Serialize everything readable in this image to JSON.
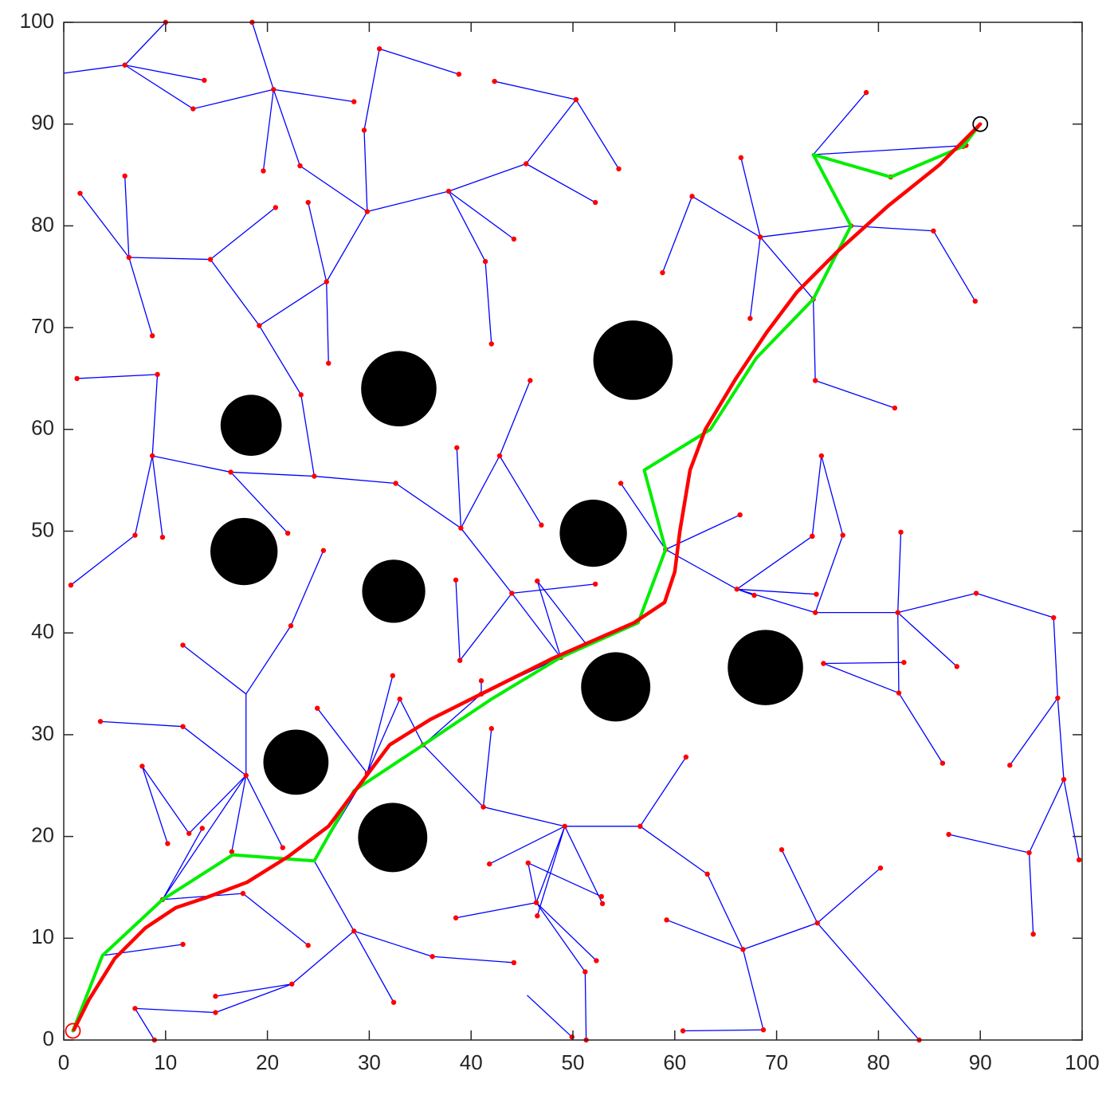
{
  "chart_data": {
    "type": "rrt",
    "xlim": [
      0,
      100
    ],
    "ylim": [
      0,
      100
    ],
    "xticks": [
      0,
      10,
      20,
      30,
      40,
      50,
      60,
      70,
      80,
      90,
      100
    ],
    "yticks": [
      0,
      10,
      20,
      30,
      40,
      50,
      60,
      70,
      80,
      90,
      100
    ],
    "obstacle_color": "#000000",
    "obstacles": [
      [
        18.4,
        60.4,
        3.0
      ],
      [
        32.9,
        64.0,
        3.7
      ],
      [
        55.9,
        66.8,
        3.9
      ],
      [
        17.7,
        48.0,
        3.3
      ],
      [
        32.4,
        44.1,
        3.1
      ],
      [
        52.0,
        49.8,
        3.3
      ],
      [
        22.8,
        27.3,
        3.2
      ],
      [
        32.3,
        19.9,
        3.4
      ],
      [
        54.2,
        34.7,
        3.4
      ],
      [
        68.9,
        36.6,
        3.7
      ]
    ],
    "tree": {
      "edge_color": "#0000ff",
      "node_color": "#ff0000",
      "edges": [
        [
          0,
          95,
          6,
          95.8
        ],
        [
          6,
          95.8,
          10,
          100
        ],
        [
          6,
          95.8,
          13.8,
          94.3
        ],
        [
          6,
          95.8,
          12.7,
          91.5
        ],
        [
          12.7,
          91.5,
          20.6,
          93.4
        ],
        [
          20.6,
          93.4,
          18.5,
          100
        ],
        [
          20.6,
          93.4,
          28.5,
          92.2
        ],
        [
          20.6,
          93.4,
          19.6,
          85.4
        ],
        [
          20.6,
          93.4,
          23.2,
          85.9
        ],
        [
          23.2,
          85.9,
          29.8,
          81.4
        ],
        [
          29.8,
          81.4,
          29.5,
          89.4
        ],
        [
          29.5,
          89.4,
          31,
          97.4
        ],
        [
          31,
          97.4,
          38.8,
          94.9
        ],
        [
          29.8,
          81.4,
          37.8,
          83.4
        ],
        [
          37.8,
          83.4,
          45.4,
          86.1
        ],
        [
          45.4,
          86.1,
          50.3,
          92.4
        ],
        [
          50.3,
          92.4,
          42.3,
          94.2
        ],
        [
          50.3,
          92.4,
          54.5,
          85.6
        ],
        [
          45.4,
          86.1,
          52.2,
          82.3
        ],
        [
          37.8,
          83.4,
          44.2,
          78.7
        ],
        [
          37.8,
          83.4,
          41.4,
          76.5
        ],
        [
          41.4,
          76.5,
          42,
          68.4
        ],
        [
          29.8,
          81.4,
          25.8,
          74.5
        ],
        [
          25.8,
          74.5,
          24,
          82.3
        ],
        [
          25.8,
          74.5,
          26,
          66.5
        ],
        [
          25.8,
          74.5,
          19.2,
          70.2
        ],
        [
          19.2,
          70.2,
          14.4,
          76.7
        ],
        [
          14.4,
          76.7,
          20.8,
          81.8
        ],
        [
          14.4,
          76.7,
          6.4,
          76.9
        ],
        [
          6.4,
          76.9,
          6,
          84.9
        ],
        [
          6.4,
          76.9,
          1.6,
          83.2
        ],
        [
          6.4,
          76.9,
          8.7,
          69.2
        ],
        [
          19.2,
          70.2,
          23.3,
          63.4
        ],
        [
          23.3,
          63.4,
          24.6,
          55.4
        ],
        [
          24.6,
          55.4,
          16.4,
          55.8
        ],
        [
          16.4,
          55.8,
          8.7,
          57.4
        ],
        [
          8.7,
          57.4,
          9.2,
          65.4
        ],
        [
          9.2,
          65.4,
          1.3,
          65
        ],
        [
          8.7,
          57.4,
          7,
          49.6
        ],
        [
          7,
          49.6,
          0.7,
          44.7
        ],
        [
          8.7,
          57.4,
          9.7,
          49.4
        ],
        [
          16.4,
          55.8,
          22,
          49.8
        ],
        [
          24.6,
          55.4,
          32.6,
          54.7
        ],
        [
          32.6,
          54.7,
          39,
          50.3
        ],
        [
          39,
          50.3,
          38.6,
          58.2
        ],
        [
          39,
          50.3,
          42.8,
          57.4
        ],
        [
          42.8,
          57.4,
          45.8,
          64.8
        ],
        [
          42.8,
          57.4,
          46.9,
          50.6
        ],
        [
          39,
          50.3,
          44,
          43.9
        ],
        [
          44,
          43.9,
          52.2,
          44.8
        ],
        [
          44,
          43.9,
          38.9,
          37.3
        ],
        [
          38.9,
          37.3,
          38.5,
          45.2
        ],
        [
          44,
          43.9,
          48.8,
          37.6
        ],
        [
          48.8,
          37.6,
          46.5,
          45.1
        ],
        [
          46.5,
          45.1,
          51.3,
          38.9
        ],
        [
          17.9,
          34,
          22.3,
          40.7
        ],
        [
          22.3,
          40.7,
          25.5,
          48.1
        ],
        [
          17.9,
          34,
          11.7,
          38.8
        ],
        [
          17.9,
          34,
          17.9,
          26
        ],
        [
          17.9,
          26,
          11.7,
          30.8
        ],
        [
          11.7,
          30.8,
          3.6,
          31.3
        ],
        [
          17.9,
          26,
          12.3,
          20.3
        ],
        [
          12.3,
          20.3,
          7.7,
          26.9
        ],
        [
          7.7,
          26.9,
          10.2,
          19.3
        ],
        [
          17.9,
          26,
          21.5,
          18.9
        ],
        [
          17.9,
          26,
          16.5,
          18.5
        ],
        [
          17.9,
          26,
          9.7,
          13.8
        ],
        [
          9.7,
          13.8,
          13.6,
          20.8
        ],
        [
          9.7,
          13.8,
          17.6,
          14.4
        ],
        [
          17.6,
          14.4,
          24,
          9.3
        ],
        [
          3.8,
          8.3,
          11.7,
          9.4
        ],
        [
          24.6,
          17.6,
          28.5,
          10.7
        ],
        [
          28.5,
          10.7,
          32.4,
          3.7
        ],
        [
          28.5,
          10.7,
          36.2,
          8.2
        ],
        [
          36.2,
          8.2,
          44.2,
          7.6
        ],
        [
          28.5,
          10.7,
          22.4,
          5.5
        ],
        [
          22.4,
          5.5,
          14.9,
          4.3
        ],
        [
          22.4,
          5.5,
          14.9,
          2.7
        ],
        [
          14.9,
          2.7,
          7,
          3.1
        ],
        [
          7,
          3.1,
          8.9,
          0
        ],
        [
          24.6,
          17.6,
          29.8,
          26.2
        ],
        [
          29.8,
          26.2,
          24.9,
          32.6
        ],
        [
          29.8,
          26.2,
          32.3,
          35.8
        ],
        [
          29.8,
          26.2,
          33,
          33.5
        ],
        [
          33,
          33.5,
          35.3,
          29
        ],
        [
          35.3,
          29,
          41.2,
          22.9
        ],
        [
          41.2,
          22.9,
          42,
          30.6
        ],
        [
          41.2,
          22.9,
          49.2,
          21
        ],
        [
          49.2,
          21,
          41.8,
          17.3
        ],
        [
          49.2,
          21,
          46.4,
          13.5
        ],
        [
          46.4,
          13.5,
          38.5,
          12
        ],
        [
          46.4,
          13.5,
          52.3,
          7.8
        ],
        [
          46.4,
          13.5,
          51.2,
          6.7
        ],
        [
          51.2,
          6.7,
          51.3,
          0
        ],
        [
          46.4,
          13.5,
          45.6,
          17.4
        ],
        [
          45.6,
          17.4,
          52.8,
          14.1
        ],
        [
          49.2,
          21,
          56.6,
          21
        ],
        [
          56.6,
          21,
          61.1,
          27.8
        ],
        [
          56.6,
          21,
          63.2,
          16.3
        ],
        [
          63.2,
          16.3,
          66.7,
          8.9
        ],
        [
          66.7,
          8.9,
          59.2,
          11.8
        ],
        [
          66.7,
          8.9,
          74,
          11.5
        ],
        [
          74,
          11.5,
          80.2,
          16.9
        ],
        [
          74,
          11.5,
          70.5,
          18.7
        ],
        [
          74,
          11.5,
          84,
          0
        ],
        [
          66.7,
          8.9,
          68.7,
          1
        ],
        [
          68.7,
          1,
          60.8,
          0.9
        ],
        [
          49.2,
          21,
          52.9,
          13.4
        ],
        [
          49.2,
          21,
          46.5,
          12.2
        ],
        [
          45.5,
          4.4,
          49.9,
          0.3
        ],
        [
          35.3,
          29,
          41,
          34
        ],
        [
          41,
          34,
          41,
          35.3
        ],
        [
          41,
          34,
          48.8,
          37.6
        ],
        [
          56.4,
          41,
          59.1,
          48.2
        ],
        [
          59.1,
          48.2,
          54.7,
          54.7
        ],
        [
          59.1,
          48.2,
          66.4,
          51.6
        ],
        [
          59.1,
          48.2,
          66.1,
          44.3
        ],
        [
          66.1,
          44.3,
          73.9,
          43.8
        ],
        [
          66.1,
          44.3,
          73.8,
          42
        ],
        [
          73.8,
          42,
          81.9,
          42
        ],
        [
          81.9,
          42,
          89.6,
          43.9
        ],
        [
          89.6,
          43.9,
          97.2,
          41.5
        ],
        [
          97.2,
          41.5,
          97.6,
          33.6
        ],
        [
          97.6,
          33.6,
          92.9,
          27
        ],
        [
          97.6,
          33.6,
          98.2,
          25.6
        ],
        [
          98.2,
          25.6,
          99.7,
          17.7
        ],
        [
          98.2,
          25.6,
          94.8,
          18.4
        ],
        [
          94.8,
          18.4,
          95.2,
          10.4
        ],
        [
          94.8,
          18.4,
          86.9,
          20.2
        ],
        [
          81.9,
          42,
          87.7,
          36.7
        ],
        [
          81.9,
          42,
          82.2,
          49.9
        ],
        [
          81.9,
          42,
          82,
          34.1
        ],
        [
          82,
          34.1,
          86.3,
          27.2
        ],
        [
          82,
          34.1,
          74.6,
          37
        ],
        [
          74.6,
          37,
          82.5,
          37.1
        ],
        [
          73.8,
          42,
          76.5,
          49.6
        ],
        [
          76.5,
          49.6,
          74.4,
          57.4
        ],
        [
          74.4,
          57.4,
          73.5,
          49.5
        ],
        [
          66.1,
          44.3,
          73.5,
          49.5
        ],
        [
          66.1,
          44.3,
          67.8,
          43.7
        ],
        [
          73.6,
          87,
          78.8,
          93.1
        ],
        [
          73.6,
          87,
          88.6,
          87.9
        ],
        [
          73.6,
          87,
          81.2,
          84.8
        ],
        [
          81.2,
          84.8,
          88.3,
          87.8
        ],
        [
          73.6,
          87,
          77.3,
          80
        ],
        [
          77.3,
          80,
          85.4,
          79.5
        ],
        [
          85.4,
          79.5,
          89.5,
          72.6
        ],
        [
          77.3,
          80,
          68.4,
          78.9
        ],
        [
          68.4,
          78.9,
          61.7,
          82.9
        ],
        [
          61.7,
          82.9,
          58.8,
          75.4
        ],
        [
          68.4,
          78.9,
          66.5,
          86.7
        ],
        [
          68.4,
          78.9,
          67.4,
          70.9
        ],
        [
          68.4,
          78.9,
          73.6,
          72.8
        ],
        [
          73.6,
          72.8,
          73.8,
          64.8
        ],
        [
          73.8,
          64.8,
          81.6,
          62.1
        ]
      ]
    },
    "series": [
      {
        "color": "#00ee00",
        "x": [
          0.9,
          3.8,
          9.7,
          16.6,
          24.6,
          28.5,
          35.3,
          42,
          48.8,
          56.4,
          59.1,
          57,
          63.5,
          68,
          73.6,
          77.3,
          73.6,
          81.2,
          88.3,
          90
        ],
        "y": [
          0.9,
          8.3,
          13.8,
          18.2,
          17.6,
          24.5,
          29,
          33.5,
          37.6,
          41,
          48.2,
          56,
          60,
          67,
          72.8,
          80,
          87,
          84.8,
          87.8,
          90
        ]
      },
      {
        "color": "#ff0000",
        "x": [
          1,
          2.5,
          5,
          8,
          11,
          14,
          18,
          22,
          26,
          29,
          32,
          36,
          41,
          48,
          56,
          59,
          60,
          60.5,
          61.5,
          63,
          66,
          69,
          72,
          76,
          81,
          86,
          90
        ],
        "y": [
          1,
          4,
          8,
          11,
          13,
          14,
          15.5,
          18,
          21,
          25,
          29,
          31.5,
          34,
          37.5,
          41,
          43,
          46,
          50,
          56,
          60,
          65,
          69.5,
          73.5,
          77.5,
          82,
          86,
          90
        ]
      }
    ],
    "start": {
      "x": 0.9,
      "y": 0.9,
      "color": "#ff0000"
    },
    "goal": {
      "x": 90,
      "y": 90,
      "color": "#000000"
    }
  }
}
